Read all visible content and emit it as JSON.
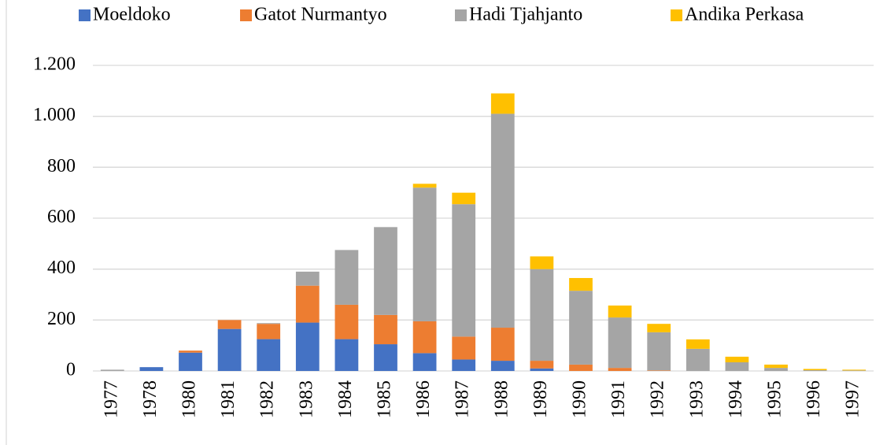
{
  "chart_data": {
    "type": "stacked_bar",
    "categories": [
      "1977",
      "1978",
      "1980",
      "1981",
      "1982",
      "1983",
      "1984",
      "1985",
      "1986",
      "1987",
      "1988",
      "1989",
      "1990",
      "1991",
      "1992",
      "1993",
      "1994",
      "1995",
      "1996",
      "1997"
    ],
    "series": [
      {
        "name": "Moeldoko",
        "color": "#4472c4",
        "values": [
          0,
          15,
          72,
          165,
          125,
          190,
          125,
          105,
          70,
          45,
          40,
          10,
          0,
          0,
          0,
          0,
          0,
          0,
          0,
          0
        ]
      },
      {
        "name": "Gatot Nurmantyo",
        "color": "#ed7d31",
        "values": [
          0,
          0,
          8,
          35,
          60,
          145,
          135,
          115,
          125,
          90,
          130,
          30,
          25,
          12,
          2,
          0,
          0,
          0,
          0,
          0
        ]
      },
      {
        "name": "Hadi Tjahjanto",
        "color": "#a5a5a5",
        "values": [
          5,
          0,
          0,
          0,
          3,
          55,
          215,
          345,
          525,
          520,
          840,
          360,
          290,
          198,
          150,
          87,
          34,
          12,
          3,
          2
        ]
      },
      {
        "name": "Andika Perkasa",
        "color": "#ffc000",
        "values": [
          0,
          0,
          0,
          0,
          0,
          0,
          0,
          0,
          15,
          45,
          80,
          50,
          50,
          47,
          33,
          37,
          22,
          13,
          5,
          3
        ]
      }
    ],
    "ylim": [
      0,
      1200
    ],
    "yticks": [
      0,
      200,
      400,
      600,
      800,
      {
        "value": 1000,
        "label": "1.000"
      },
      {
        "value": 1200,
        "label": "1.200"
      }
    ],
    "grid": true,
    "legend": "top"
  }
}
